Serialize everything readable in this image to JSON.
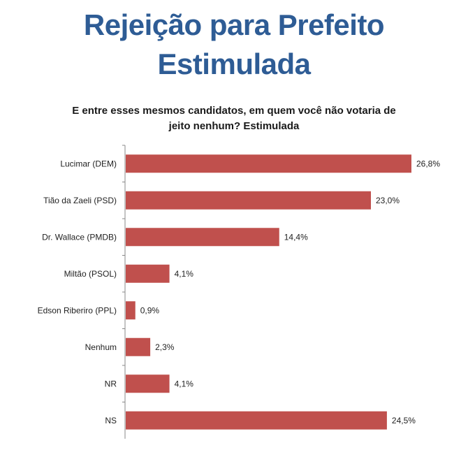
{
  "chart_data": {
    "type": "bar",
    "orientation": "horizontal",
    "title": "Rejeição para Prefeito Estimulada",
    "title_lines": [
      "Rejeição para Prefeito",
      "Estimulada"
    ],
    "subtitle": "E entre esses mesmos candidatos, em quem você não votaria de jeito nenhum? Estimulada",
    "subtitle_lines": [
      "E entre esses mesmos candidatos, em quem você não votaria de",
      "jeito nenhum? Estimulada"
    ],
    "categories": [
      "Lucimar (DEM)",
      "Tião da Zaeli (PSD)",
      "Dr. Wallace (PMDB)",
      "Miltão (PSOL)",
      "Edson Riberiro (PPL)",
      "Nenhum",
      "NR",
      "NS"
    ],
    "values": [
      26.8,
      23.0,
      14.4,
      4.1,
      0.9,
      2.3,
      4.1,
      24.5
    ],
    "value_labels": [
      "26,8%",
      "23,0%",
      "14,4%",
      "4,1%",
      "0,9%",
      "2,3%",
      "4,1%",
      "24,5%"
    ],
    "xlim": [
      0,
      26.8
    ],
    "bar_color": "#c0504d",
    "title_color": "#2e5c95",
    "grid": false,
    "legend": "none"
  }
}
